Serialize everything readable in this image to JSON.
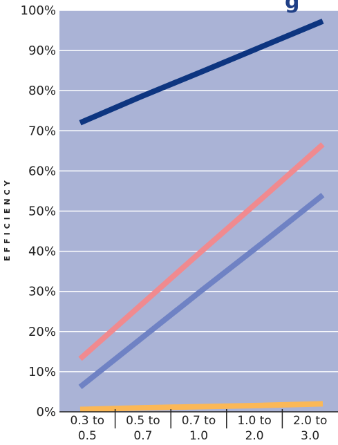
{
  "chart_data": {
    "type": "line",
    "title_fragment": "g",
    "xlabel": "",
    "ylabel": "EFFICIENCY",
    "categories": [
      "0.3 to 0.5",
      "0.5 to 0.7",
      "0.7 to 1.0",
      "1.0 to 2.0",
      "2.0 to 3.0"
    ],
    "category_lines": [
      [
        "0.3 to",
        "0.5"
      ],
      [
        "0.5 to",
        "0.7"
      ],
      [
        "0.7 to",
        "1.0"
      ],
      [
        "1.0 to",
        "2.0"
      ],
      [
        "2.0 to",
        "3.0"
      ]
    ],
    "y_ticks": [
      "0%",
      "10%",
      "20%",
      "30%",
      "40%",
      "50%",
      "60%",
      "70%",
      "80%",
      "90%",
      "100%"
    ],
    "ylim": [
      0,
      100
    ],
    "grid": true,
    "series": [
      {
        "values": [
          72,
          78.5,
          84.7,
          91,
          97.3
        ],
        "color": "#0d3580"
      },
      {
        "values": [
          13.2,
          26.6,
          40,
          53.2,
          66.6
        ],
        "color": "#f08a8f"
      },
      {
        "values": [
          6.2,
          18.2,
          30.2,
          42,
          54
        ],
        "color": "#6f82c4"
      },
      {
        "values": [
          0.6,
          1.0,
          1.3,
          1.6,
          2.0
        ],
        "color": "#fbb857"
      }
    ],
    "plot_background": "#aab3d6",
    "gridline_color": "#ffffff"
  }
}
